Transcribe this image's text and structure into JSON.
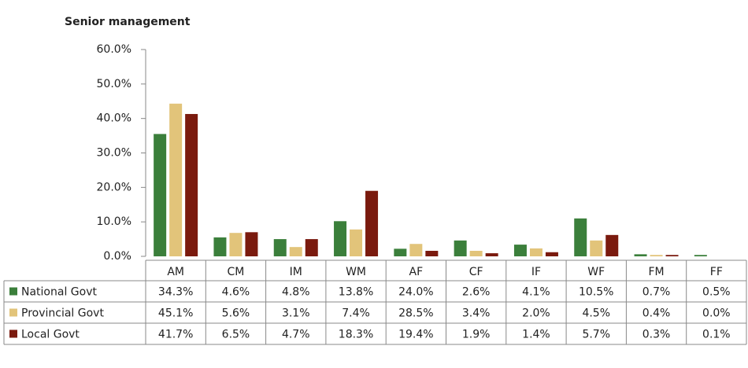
{
  "chart_data": {
    "type": "bar",
    "title": "Senior management",
    "categories": [
      "AM",
      "CM",
      "IM",
      "WM",
      "AF",
      "CF",
      "IF",
      "WF",
      "FM",
      "FF"
    ],
    "series": [
      {
        "name": "National Govt",
        "color": "#3b7f3b",
        "values": [
          35.5,
          5.5,
          5.0,
          10.2,
          2.2,
          4.6,
          3.4,
          11.0,
          0.6,
          0.4
        ]
      },
      {
        "name": "Provincial Govt",
        "color": "#e2c47a",
        "values": [
          44.3,
          6.8,
          2.7,
          7.8,
          3.6,
          1.6,
          2.3,
          4.6,
          0.4,
          0.0
        ]
      },
      {
        "name": "Local Govt",
        "color": "#7a1a0e",
        "values": [
          41.3,
          7.0,
          5.0,
          19.0,
          1.6,
          0.9,
          1.2,
          6.2,
          0.4,
          0.0
        ]
      }
    ],
    "table": [
      [
        "34.3%",
        "4.6%",
        "4.8%",
        "13.8%",
        "24.0%",
        "2.6%",
        "4.1%",
        "10.5%",
        "0.7%",
        "0.5%"
      ],
      [
        "45.1%",
        "5.6%",
        "3.1%",
        "7.4%",
        "28.5%",
        "3.4%",
        "2.0%",
        "4.5%",
        "0.4%",
        "0.0%"
      ],
      [
        "41.7%",
        "6.5%",
        "4.7%",
        "18.3%",
        "19.4%",
        "1.9%",
        "1.4%",
        "5.7%",
        "0.3%",
        "0.1%"
      ]
    ],
    "ylim": [
      0,
      60
    ],
    "yticks": [
      {
        "value": 0,
        "label": "0.0%"
      },
      {
        "value": 10,
        "label": "10.0%"
      },
      {
        "value": 20,
        "label": "20.0%"
      },
      {
        "value": 30,
        "label": "30.0%"
      },
      {
        "value": 40,
        "label": "40.0%"
      },
      {
        "value": 50,
        "label": "50.0%"
      },
      {
        "value": 60,
        "label": "60.0%"
      }
    ]
  }
}
